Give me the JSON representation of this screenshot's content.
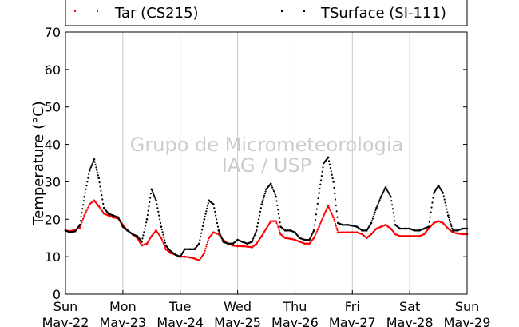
{
  "chart_data": {
    "type": "scatter",
    "ylabel": "Temperature (°C)",
    "ylim": [
      0,
      70
    ],
    "yticks": [
      0,
      10,
      20,
      30,
      40,
      50,
      60,
      70
    ],
    "xlim_days": [
      0,
      7
    ],
    "x_ticks": [
      {
        "day": 0,
        "line1": "Sun",
        "line2": "Mav-22"
      },
      {
        "day": 1,
        "line1": "Mon",
        "line2": "Mav-23"
      },
      {
        "day": 2,
        "line1": "Tue",
        "line2": "Mav-24"
      },
      {
        "day": 3,
        "line1": "Wed",
        "line2": "Mav-25"
      },
      {
        "day": 4,
        "line1": "Thu",
        "line2": "Mav-26"
      },
      {
        "day": 5,
        "line1": "Fri",
        "line2": "Mav-27"
      },
      {
        "day": 6,
        "line1": "Sat",
        "line2": "Mav-28"
      },
      {
        "day": 7,
        "line1": "Sun",
        "line2": "Mav-29"
      }
    ],
    "grid": "vertical",
    "legend_position": "top",
    "watermark": [
      "Grupo de Micrometeorologia",
      "IAG / USP"
    ],
    "series": [
      {
        "name": "Tar (CS215)",
        "color": "#ff0000",
        "points": [
          [
            0.0,
            17.0
          ],
          [
            0.08,
            16.8
          ],
          [
            0.17,
            17.2
          ],
          [
            0.25,
            17.8
          ],
          [
            0.33,
            21.0
          ],
          [
            0.42,
            24.0
          ],
          [
            0.5,
            25.0
          ],
          [
            0.58,
            23.5
          ],
          [
            0.67,
            21.5
          ],
          [
            0.75,
            21.0
          ],
          [
            0.83,
            20.5
          ],
          [
            0.92,
            20.2
          ],
          [
            1.0,
            18.5
          ],
          [
            1.08,
            17.0
          ],
          [
            1.17,
            16.0
          ],
          [
            1.25,
            15.0
          ],
          [
            1.33,
            13.0
          ],
          [
            1.42,
            13.5
          ],
          [
            1.5,
            15.5
          ],
          [
            1.58,
            17.0
          ],
          [
            1.67,
            15.0
          ],
          [
            1.75,
            12.0
          ],
          [
            1.83,
            11.0
          ],
          [
            1.92,
            10.5
          ],
          [
            2.0,
            10.0
          ],
          [
            2.08,
            10.0
          ],
          [
            2.17,
            9.8
          ],
          [
            2.25,
            9.5
          ],
          [
            2.33,
            9.0
          ],
          [
            2.42,
            11.0
          ],
          [
            2.5,
            15.0
          ],
          [
            2.58,
            16.5
          ],
          [
            2.67,
            16.0
          ],
          [
            2.75,
            14.5
          ],
          [
            2.83,
            13.5
          ],
          [
            2.92,
            13.0
          ],
          [
            3.0,
            12.8
          ],
          [
            3.08,
            12.8
          ],
          [
            3.17,
            12.7
          ],
          [
            3.25,
            12.5
          ],
          [
            3.33,
            13.5
          ],
          [
            3.42,
            15.5
          ],
          [
            3.5,
            17.5
          ],
          [
            3.58,
            19.5
          ],
          [
            3.67,
            19.5
          ],
          [
            3.75,
            16.0
          ],
          [
            3.83,
            15.0
          ],
          [
            3.92,
            14.8
          ],
          [
            4.0,
            14.5
          ],
          [
            4.08,
            14.0
          ],
          [
            4.17,
            13.5
          ],
          [
            4.25,
            13.5
          ],
          [
            4.33,
            15.0
          ],
          [
            4.42,
            18.0
          ],
          [
            4.5,
            21.0
          ],
          [
            4.58,
            23.5
          ],
          [
            4.67,
            20.5
          ],
          [
            4.75,
            16.5
          ],
          [
            4.83,
            16.5
          ],
          [
            4.92,
            16.5
          ],
          [
            5.0,
            16.5
          ],
          [
            5.08,
            16.5
          ],
          [
            5.17,
            16.0
          ],
          [
            5.25,
            15.0
          ],
          [
            5.33,
            16.0
          ],
          [
            5.42,
            17.5
          ],
          [
            5.5,
            18.0
          ],
          [
            5.58,
            18.5
          ],
          [
            5.67,
            17.5
          ],
          [
            5.75,
            16.0
          ],
          [
            5.83,
            15.5
          ],
          [
            5.92,
            15.5
          ],
          [
            6.0,
            15.5
          ],
          [
            6.08,
            15.5
          ],
          [
            6.17,
            15.5
          ],
          [
            6.25,
            16.0
          ],
          [
            6.33,
            17.5
          ],
          [
            6.42,
            19.0
          ],
          [
            6.5,
            19.5
          ],
          [
            6.58,
            19.0
          ],
          [
            6.67,
            17.5
          ],
          [
            6.75,
            16.5
          ],
          [
            6.83,
            16.2
          ],
          [
            6.92,
            16.0
          ],
          [
            7.0,
            16.0
          ]
        ]
      },
      {
        "name": "TSurface (SI-111)",
        "color": "#000000",
        "points": [
          [
            0.0,
            17.0
          ],
          [
            0.08,
            16.5
          ],
          [
            0.17,
            16.8
          ],
          [
            0.25,
            18.5
          ],
          [
            0.33,
            26.0
          ],
          [
            0.42,
            33.0
          ],
          [
            0.5,
            36.0
          ],
          [
            0.58,
            31.0
          ],
          [
            0.67,
            23.0
          ],
          [
            0.75,
            21.5
          ],
          [
            0.83,
            21.0
          ],
          [
            0.92,
            20.5
          ],
          [
            1.0,
            18.0
          ],
          [
            1.08,
            17.0
          ],
          [
            1.17,
            16.0
          ],
          [
            1.25,
            15.5
          ],
          [
            1.33,
            14.0
          ],
          [
            1.42,
            20.0
          ],
          [
            1.5,
            28.0
          ],
          [
            1.58,
            25.0
          ],
          [
            1.67,
            18.0
          ],
          [
            1.75,
            13.0
          ],
          [
            1.83,
            11.5
          ],
          [
            1.92,
            10.5
          ],
          [
            2.0,
            10.0
          ],
          [
            2.08,
            12.0
          ],
          [
            2.17,
            12.0
          ],
          [
            2.25,
            12.0
          ],
          [
            2.33,
            13.5
          ],
          [
            2.42,
            20.0
          ],
          [
            2.5,
            25.0
          ],
          [
            2.58,
            24.0
          ],
          [
            2.67,
            17.0
          ],
          [
            2.75,
            14.0
          ],
          [
            2.83,
            13.5
          ],
          [
            2.92,
            13.5
          ],
          [
            3.0,
            14.5
          ],
          [
            3.08,
            14.0
          ],
          [
            3.17,
            13.5
          ],
          [
            3.25,
            14.0
          ],
          [
            3.33,
            17.0
          ],
          [
            3.42,
            24.0
          ],
          [
            3.5,
            28.0
          ],
          [
            3.58,
            29.5
          ],
          [
            3.67,
            26.0
          ],
          [
            3.75,
            18.0
          ],
          [
            3.83,
            17.0
          ],
          [
            3.92,
            17.0
          ],
          [
            4.0,
            16.5
          ],
          [
            4.08,
            15.0
          ],
          [
            4.17,
            14.5
          ],
          [
            4.25,
            14.5
          ],
          [
            4.33,
            17.0
          ],
          [
            4.42,
            27.0
          ],
          [
            4.5,
            35.0
          ],
          [
            4.58,
            36.5
          ],
          [
            4.67,
            30.0
          ],
          [
            4.75,
            19.0
          ],
          [
            4.83,
            18.5
          ],
          [
            4.92,
            18.5
          ],
          [
            5.0,
            18.3
          ],
          [
            5.08,
            18.0
          ],
          [
            5.17,
            17.0
          ],
          [
            5.25,
            17.0
          ],
          [
            5.33,
            19.0
          ],
          [
            5.42,
            23.0
          ],
          [
            5.5,
            26.0
          ],
          [
            5.58,
            28.5
          ],
          [
            5.67,
            26.0
          ],
          [
            5.75,
            18.5
          ],
          [
            5.83,
            17.5
          ],
          [
            5.92,
            17.5
          ],
          [
            6.0,
            17.5
          ],
          [
            6.08,
            17.0
          ],
          [
            6.17,
            17.0
          ],
          [
            6.25,
            17.5
          ],
          [
            6.33,
            18.0
          ],
          [
            6.42,
            27.0
          ],
          [
            6.5,
            29.0
          ],
          [
            6.58,
            27.0
          ],
          [
            6.67,
            21.0
          ],
          [
            6.75,
            17.0
          ],
          [
            6.83,
            17.0
          ],
          [
            6.92,
            17.5
          ],
          [
            7.0,
            17.5
          ]
        ]
      }
    ]
  }
}
